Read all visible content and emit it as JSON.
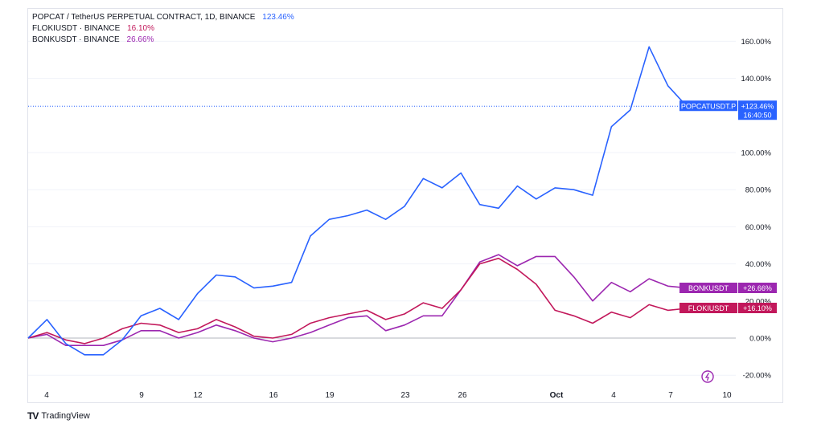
{
  "legend": {
    "series": [
      {
        "label": "POPCAT / TetherUS PERPETUAL CONTRACT, 1D, BINANCE",
        "value": "123.46%",
        "color": "#2962ff"
      },
      {
        "label": "FLOKIUSDT · BINANCE",
        "value": "16.10%",
        "color": "#c2185b"
      },
      {
        "label": "BONKUSDT · BINANCE",
        "value": "26.66%",
        "color": "#9c27b0"
      }
    ]
  },
  "badges": {
    "popcat": {
      "name": "POPCATUSDT.P",
      "value": "+123.46%",
      "time": "16:40:50"
    },
    "bonk": {
      "name": "BONKUSDT",
      "value": "+26.66%"
    },
    "floki": {
      "name": "FLOKIUSDT",
      "value": "+16.10%"
    }
  },
  "footer": {
    "logo": "TV",
    "brand": "TradingView"
  },
  "chart_data": {
    "type": "line",
    "ylim": [
      -25,
      170
    ],
    "x_tick_labels": [
      "4",
      "9",
      "12",
      "16",
      "19",
      "23",
      "26",
      "Oct",
      "4",
      "7",
      "10"
    ],
    "y_tick_labels": [
      "160.00%",
      "140.00%",
      "100.00%",
      "80.00%",
      "60.00%",
      "40.00%",
      "20.00%",
      "0.00%",
      "-20.00%"
    ],
    "y_tick_values": [
      160,
      140,
      100,
      80,
      60,
      40,
      20,
      0,
      -20
    ],
    "series": [
      {
        "name": "POPCATUSDT.P",
        "color": "#2962ff",
        "values": [
          0,
          10,
          -3,
          -9,
          -9,
          -1,
          12,
          16,
          10,
          24,
          34,
          33,
          27,
          28,
          30,
          55,
          64,
          66,
          69,
          64,
          71,
          86,
          81,
          89,
          72,
          70,
          82,
          75,
          81,
          80,
          77,
          114,
          123,
          157,
          136,
          125
        ]
      },
      {
        "name": "FLOKIUSDT",
        "color": "#c2185b",
        "values": [
          0,
          3,
          -1,
          -3,
          0,
          5,
          8,
          7,
          3,
          5,
          10,
          6,
          1,
          0,
          2,
          8,
          11,
          13,
          15,
          10,
          13,
          19,
          16,
          26,
          40,
          43,
          37,
          29,
          15,
          12,
          8,
          14,
          11,
          18,
          15,
          16
        ]
      },
      {
        "name": "BONKUSDT",
        "color": "#9c27b0",
        "values": [
          0,
          2,
          -4,
          -4,
          -4,
          -1,
          4,
          4,
          0,
          3,
          7,
          4,
          0,
          -2,
          0,
          3,
          7,
          11,
          12,
          4,
          7,
          12,
          12,
          26,
          41,
          45,
          39,
          44,
          44,
          33,
          20,
          30,
          25,
          32,
          28,
          27
        ]
      }
    ]
  }
}
